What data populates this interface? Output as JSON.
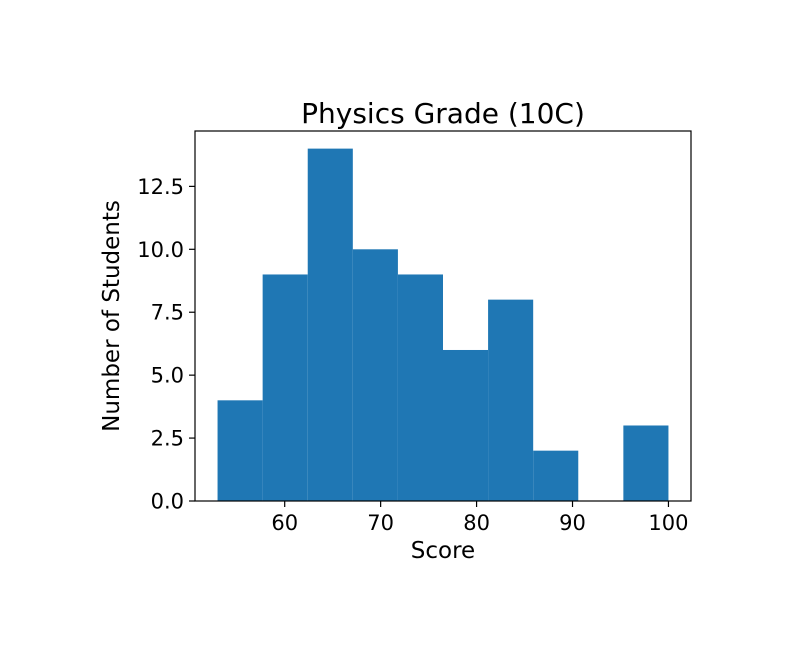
{
  "chart_data": {
    "type": "bar",
    "subtype": "histogram",
    "title": "Physics Grade (10C)",
    "xlabel": "Score",
    "ylabel": "Number of Students",
    "bin_edges": [
      53.0,
      57.7,
      62.4,
      67.1,
      71.8,
      76.5,
      81.2,
      85.9,
      90.6,
      95.3,
      100.0
    ],
    "values": [
      4,
      9,
      14,
      10,
      9,
      6,
      8,
      2,
      0,
      3
    ],
    "xlim": [
      50.65,
      102.35
    ],
    "ylim": [
      0,
      14.7
    ],
    "x_ticks": [
      60,
      70,
      80,
      90,
      100
    ],
    "x_tick_labels": [
      "60",
      "70",
      "80",
      "90",
      "100"
    ],
    "y_ticks": [
      0,
      2.5,
      5,
      7.5,
      10,
      12.5
    ],
    "y_tick_labels": [
      "0.0",
      "2.5",
      "5.0",
      "7.5",
      "10.0",
      "12.5"
    ],
    "bar_color": "#1f77b4",
    "grid": false,
    "legend": "none"
  }
}
